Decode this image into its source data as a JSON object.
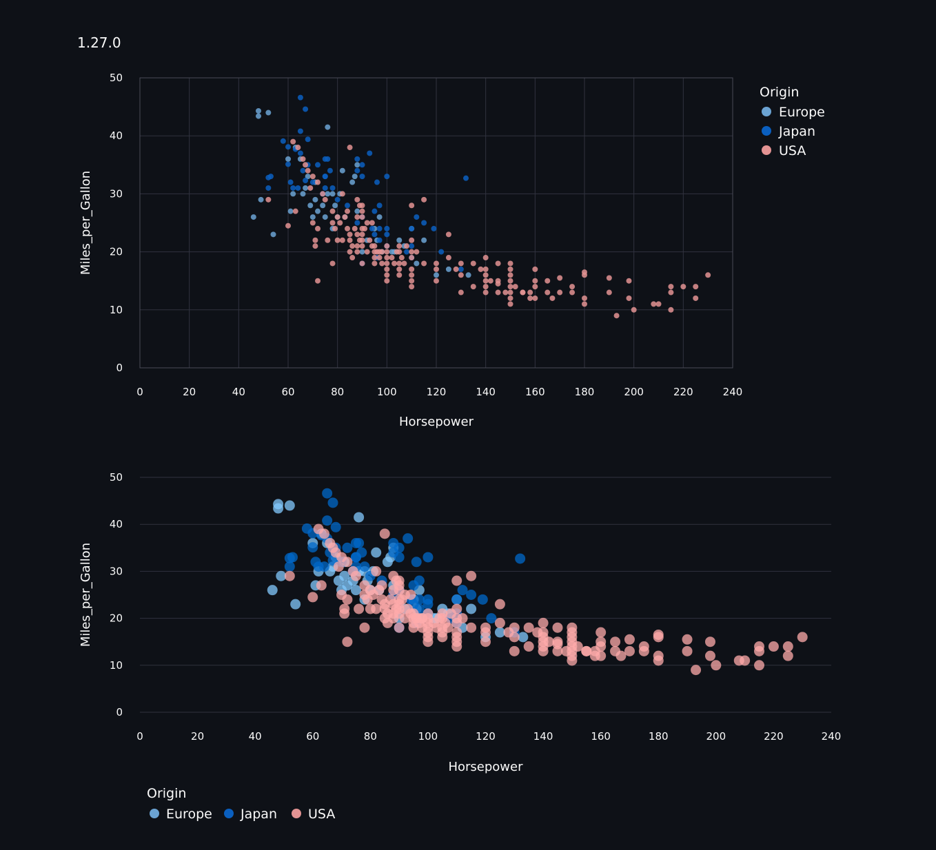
{
  "version": "1.27.0",
  "colors": {
    "Europe": "#6ba3d3",
    "Japan": "#0a5fbf",
    "USA": "#e39393",
    "Europe_bright": "#83c9ff",
    "Japan_bright": "#0068c9",
    "USA_bright": "#ffabab",
    "grid": "#31333f",
    "background": "#0e1117"
  },
  "chart_data": [
    {
      "type": "scatter",
      "xlabel": "Horsepower",
      "ylabel": "Miles_per_Gallon",
      "xlim": [
        0,
        240
      ],
      "ylim": [
        0,
        50
      ],
      "xticks": [
        0,
        20,
        40,
        60,
        80,
        100,
        120,
        140,
        160,
        180,
        200,
        220,
        240
      ],
      "yticks": [
        0,
        10,
        20,
        30,
        40,
        50
      ],
      "grid": "on (both axes)",
      "legend": {
        "title": "Origin",
        "position": "right",
        "entries": [
          "Europe",
          "Japan",
          "USA"
        ]
      }
    },
    {
      "type": "scatter",
      "xlabel": "Horsepower",
      "ylabel": "Miles_per_Gallon",
      "xlim": [
        0,
        240
      ],
      "ylim": [
        0,
        50
      ],
      "xticks": [
        0,
        20,
        40,
        60,
        80,
        100,
        120,
        140,
        160,
        180,
        200,
        220,
        240
      ],
      "yticks": [
        0,
        10,
        20,
        30,
        40,
        50
      ],
      "grid": "horizontal only",
      "legend": {
        "title": "Origin",
        "position": "bottom",
        "entries": [
          "Europe",
          "Japan",
          "USA"
        ]
      }
    }
  ],
  "series": [
    {
      "name": "Europe",
      "points": [
        [
          48,
          44.3
        ],
        [
          48,
          43.4
        ],
        [
          52,
          44
        ],
        [
          46,
          26
        ],
        [
          54,
          23
        ],
        [
          49,
          29
        ],
        [
          60,
          36
        ],
        [
          61,
          27
        ],
        [
          62,
          30
        ],
        [
          63,
          38
        ],
        [
          65,
          36
        ],
        [
          66,
          30
        ],
        [
          67,
          31
        ],
        [
          68,
          33
        ],
        [
          69,
          28
        ],
        [
          70,
          26
        ],
        [
          71,
          29
        ],
        [
          71,
          32
        ],
        [
          72,
          27
        ],
        [
          74,
          28
        ],
        [
          75,
          26
        ],
        [
          76,
          41.5
        ],
        [
          76,
          30
        ],
        [
          78,
          24
        ],
        [
          78,
          30
        ],
        [
          79,
          28
        ],
        [
          80,
          26
        ],
        [
          81,
          30
        ],
        [
          82,
          34
        ],
        [
          83,
          26
        ],
        [
          86,
          32
        ],
        [
          87,
          33
        ],
        [
          88,
          27
        ],
        [
          88,
          35
        ],
        [
          90,
          20
        ],
        [
          92,
          22
        ],
        [
          95,
          24
        ],
        [
          96,
          22
        ],
        [
          97,
          26
        ],
        [
          98,
          20
        ],
        [
          102,
          20
        ],
        [
          103,
          20
        ],
        [
          105,
          22
        ],
        [
          107,
          21
        ],
        [
          110,
          24
        ],
        [
          112,
          18
        ],
        [
          115,
          22
        ],
        [
          120,
          16
        ],
        [
          125,
          17
        ],
        [
          133,
          16
        ]
      ]
    },
    {
      "name": "Japan",
      "points": [
        [
          65,
          46.6
        ],
        [
          67,
          44.6
        ],
        [
          65,
          40.8
        ],
        [
          68,
          39.4
        ],
        [
          58,
          39.1
        ],
        [
          60,
          38.1
        ],
        [
          63,
          37.7
        ],
        [
          65,
          37
        ],
        [
          66,
          34
        ],
        [
          68,
          35
        ],
        [
          60,
          35.1
        ],
        [
          52,
          32.8
        ],
        [
          53,
          33
        ],
        [
          52,
          31
        ],
        [
          61,
          32
        ],
        [
          64,
          31
        ],
        [
          67,
          32.3
        ],
        [
          70,
          32
        ],
        [
          75,
          31
        ],
        [
          75,
          33
        ],
        [
          75,
          36
        ],
        [
          76,
          36
        ],
        [
          77,
          34
        ],
        [
          80,
          29
        ],
        [
          84,
          28
        ],
        [
          88,
          36
        ],
        [
          88,
          34
        ],
        [
          90,
          33
        ],
        [
          90,
          35
        ],
        [
          93,
          37
        ],
        [
          95,
          27
        ],
        [
          96,
          32
        ],
        [
          97,
          28
        ],
        [
          97,
          24
        ],
        [
          100,
          33
        ],
        [
          100,
          24
        ],
        [
          108,
          20
        ],
        [
          110,
          24
        ],
        [
          110,
          21
        ],
        [
          112,
          26
        ],
        [
          115,
          25
        ],
        [
          119,
          24
        ],
        [
          122,
          20
        ],
        [
          132,
          32.7
        ],
        [
          96,
          19
        ],
        [
          90,
          18
        ],
        [
          97,
          22
        ],
        [
          100,
          23
        ],
        [
          75,
          33
        ],
        [
          72,
          35
        ],
        [
          62,
          31
        ],
        [
          74,
          30
        ],
        [
          78,
          31
        ],
        [
          88,
          25
        ],
        [
          94,
          24
        ],
        [
          95,
          23
        ],
        [
          90,
          26
        ],
        [
          100,
          21
        ],
        [
          110,
          19
        ],
        [
          130,
          17
        ]
      ]
    },
    {
      "name": "USA",
      "points": [
        [
          72,
          15
        ],
        [
          78,
          18
        ],
        [
          90,
          28
        ],
        [
          105,
          21
        ],
        [
          110,
          28
        ],
        [
          115,
          29
        ],
        [
          100,
          20
        ],
        [
          88,
          26
        ],
        [
          85,
          38
        ],
        [
          82,
          30
        ],
        [
          90,
          23
        ],
        [
          94,
          25
        ],
        [
          100,
          19
        ],
        [
          105,
          18
        ],
        [
          110,
          16
        ],
        [
          110,
          17
        ],
        [
          110,
          19
        ],
        [
          110,
          22
        ],
        [
          120,
          18
        ],
        [
          125,
          23
        ],
        [
          130,
          13
        ],
        [
          130,
          16
        ],
        [
          135,
          14
        ],
        [
          140,
          13
        ],
        [
          140,
          15
        ],
        [
          145,
          13
        ],
        [
          150,
          14
        ],
        [
          150,
          15
        ],
        [
          150,
          16
        ],
        [
          150,
          18
        ],
        [
          155,
          13
        ],
        [
          160,
          14
        ],
        [
          160,
          17
        ],
        [
          165,
          13
        ],
        [
          170,
          13
        ],
        [
          175,
          13
        ],
        [
          180,
          12
        ],
        [
          180,
          16
        ],
        [
          190,
          13
        ],
        [
          193,
          9
        ],
        [
          198,
          12
        ],
        [
          200,
          10
        ],
        [
          208,
          11
        ],
        [
          210,
          11
        ],
        [
          215,
          14
        ],
        [
          215,
          13
        ],
        [
          215,
          10
        ],
        [
          220,
          14
        ],
        [
          225,
          14
        ],
        [
          225,
          12
        ],
        [
          230,
          16
        ],
        [
          198,
          15
        ],
        [
          190,
          15.5
        ],
        [
          180,
          16.5
        ],
        [
          170,
          15.5
        ],
        [
          165,
          15
        ],
        [
          160,
          15
        ],
        [
          150,
          17
        ],
        [
          145,
          14.5
        ],
        [
          140,
          16
        ],
        [
          140,
          17
        ],
        [
          140,
          19
        ],
        [
          145,
          18
        ],
        [
          150,
          12
        ],
        [
          150,
          11
        ],
        [
          152,
          14
        ],
        [
          155,
          13
        ],
        [
          158,
          13
        ],
        [
          160,
          12
        ],
        [
          167,
          12
        ],
        [
          175,
          14
        ],
        [
          180,
          11
        ],
        [
          88,
          20
        ],
        [
          90,
          18
        ],
        [
          92,
          20
        ],
        [
          95,
          19
        ],
        [
          95,
          18
        ],
        [
          97,
          20
        ],
        [
          98,
          18
        ],
        [
          100,
          16
        ],
        [
          100,
          15
        ],
        [
          100,
          17
        ],
        [
          100,
          18
        ],
        [
          105,
          17
        ],
        [
          105,
          16
        ],
        [
          110,
          15
        ],
        [
          110,
          14
        ],
        [
          85,
          22
        ],
        [
          85,
          20
        ],
        [
          86,
          19
        ],
        [
          88,
          21
        ],
        [
          89,
          22
        ],
        [
          90,
          21
        ],
        [
          90,
          24
        ],
        [
          90,
          22
        ],
        [
          95,
          21
        ],
        [
          84,
          24
        ],
        [
          80,
          26
        ],
        [
          78,
          27
        ],
        [
          75,
          29
        ],
        [
          72,
          24
        ],
        [
          70,
          25
        ],
        [
          68,
          34
        ],
        [
          66,
          36
        ],
        [
          64,
          38
        ],
        [
          62,
          39
        ],
        [
          67,
          35
        ],
        [
          70,
          33
        ],
        [
          72,
          32
        ],
        [
          74,
          30
        ],
        [
          60,
          24.5
        ],
        [
          52,
          29
        ],
        [
          63,
          27
        ],
        [
          69,
          31
        ],
        [
          71,
          21
        ],
        [
          71,
          22
        ],
        [
          76,
          22
        ],
        [
          78,
          25
        ],
        [
          79,
          24
        ],
        [
          80,
          22
        ],
        [
          81,
          25
        ],
        [
          82,
          22
        ],
        [
          83,
          26
        ],
        [
          84,
          27
        ],
        [
          85,
          23
        ],
        [
          86,
          21
        ],
        [
          87,
          24
        ],
        [
          88,
          23
        ],
        [
          88,
          29
        ],
        [
          89,
          28
        ],
        [
          90,
          26
        ],
        [
          90,
          27
        ],
        [
          91,
          24
        ],
        [
          92,
          25
        ],
        [
          93,
          22
        ],
        [
          94,
          21
        ],
        [
          95,
          20
        ],
        [
          96,
          20
        ],
        [
          97,
          19
        ],
        [
          98,
          20
        ],
        [
          100,
          21
        ],
        [
          102,
          19
        ],
        [
          103,
          18
        ],
        [
          104,
          20
        ],
        [
          105,
          20
        ],
        [
          106,
          19
        ],
        [
          107,
          18
        ],
        [
          108,
          21
        ],
        [
          110,
          20
        ],
        [
          112,
          20
        ],
        [
          115,
          18
        ],
        [
          120,
          17
        ],
        [
          120,
          15
        ],
        [
          125,
          19
        ],
        [
          128,
          17
        ],
        [
          130,
          18
        ],
        [
          135,
          18
        ],
        [
          138,
          17
        ],
        [
          140,
          14
        ],
        [
          142,
          15
        ],
        [
          145,
          15
        ],
        [
          148,
          13
        ],
        [
          150,
          13
        ],
        [
          158,
          12
        ]
      ]
    }
  ]
}
